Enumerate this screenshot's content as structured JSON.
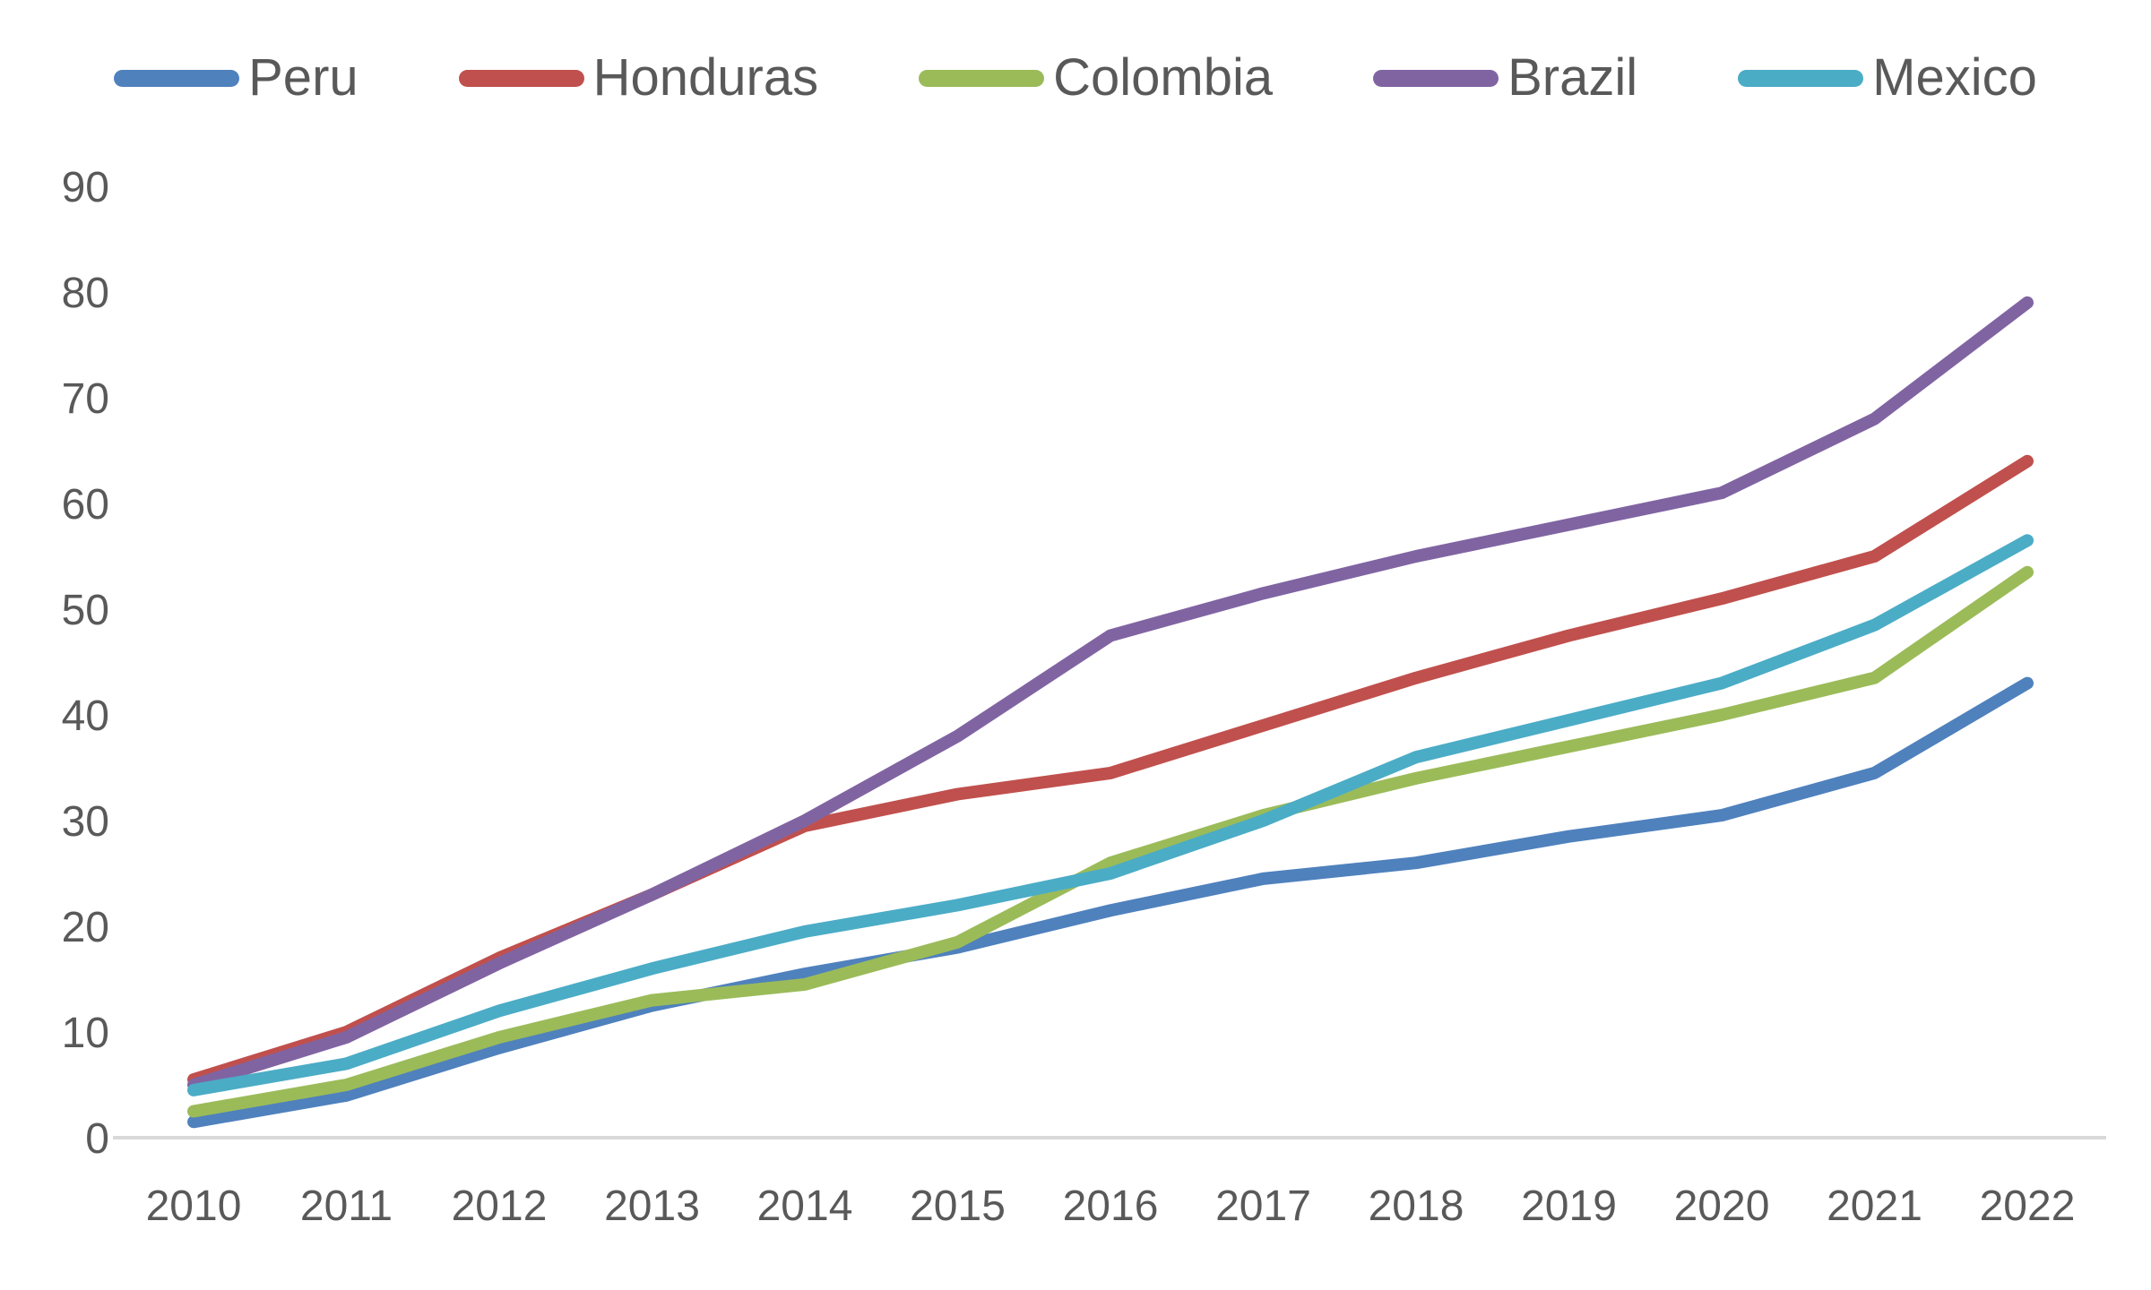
{
  "chart_data": {
    "type": "line",
    "title": "",
    "xlabel": "",
    "ylabel": "",
    "x": [
      "2010",
      "2011",
      "2012",
      "2013",
      "2014",
      "2015",
      "2016",
      "2017",
      "2018",
      "2019",
      "2020",
      "2021",
      "2022"
    ],
    "series": [
      {
        "name": "Peru",
        "color": "#4F81BD",
        "values": [
          1.5,
          4,
          8.5,
          12.5,
          15.5,
          18,
          21.5,
          24.5,
          26,
          28.5,
          30.5,
          34.5,
          43
        ]
      },
      {
        "name": "Honduras",
        "color": "#C0504D",
        "values": [
          5.5,
          10,
          17,
          23,
          29.5,
          32.5,
          34.5,
          39,
          43.5,
          47.5,
          51,
          55,
          64
        ]
      },
      {
        "name": "Colombia",
        "color": "#9BBB59",
        "values": [
          2.5,
          5,
          9.5,
          13,
          14.5,
          18.5,
          26,
          30.5,
          34,
          37,
          40,
          43.5,
          53.5
        ]
      },
      {
        "name": "Brazil",
        "color": "#8064A2",
        "values": [
          5,
          9.5,
          16.5,
          23,
          30,
          38,
          47.5,
          51.5,
          55,
          58,
          61,
          68,
          79
        ]
      },
      {
        "name": "Mexico",
        "color": "#4BACC6",
        "values": [
          4.5,
          7,
          12,
          16,
          19.5,
          22,
          25,
          30,
          36,
          39.5,
          43,
          48.5,
          56.5
        ]
      }
    ],
    "ylim": [
      0,
      90
    ],
    "ytick_step": 10,
    "yticks": [
      0,
      10,
      20,
      30,
      40,
      50,
      60,
      70,
      80,
      90
    ],
    "grid": false,
    "legend_position": "top",
    "axis_line_color": "#D9D9D9",
    "text_color": "#595959",
    "line_width": 14
  }
}
